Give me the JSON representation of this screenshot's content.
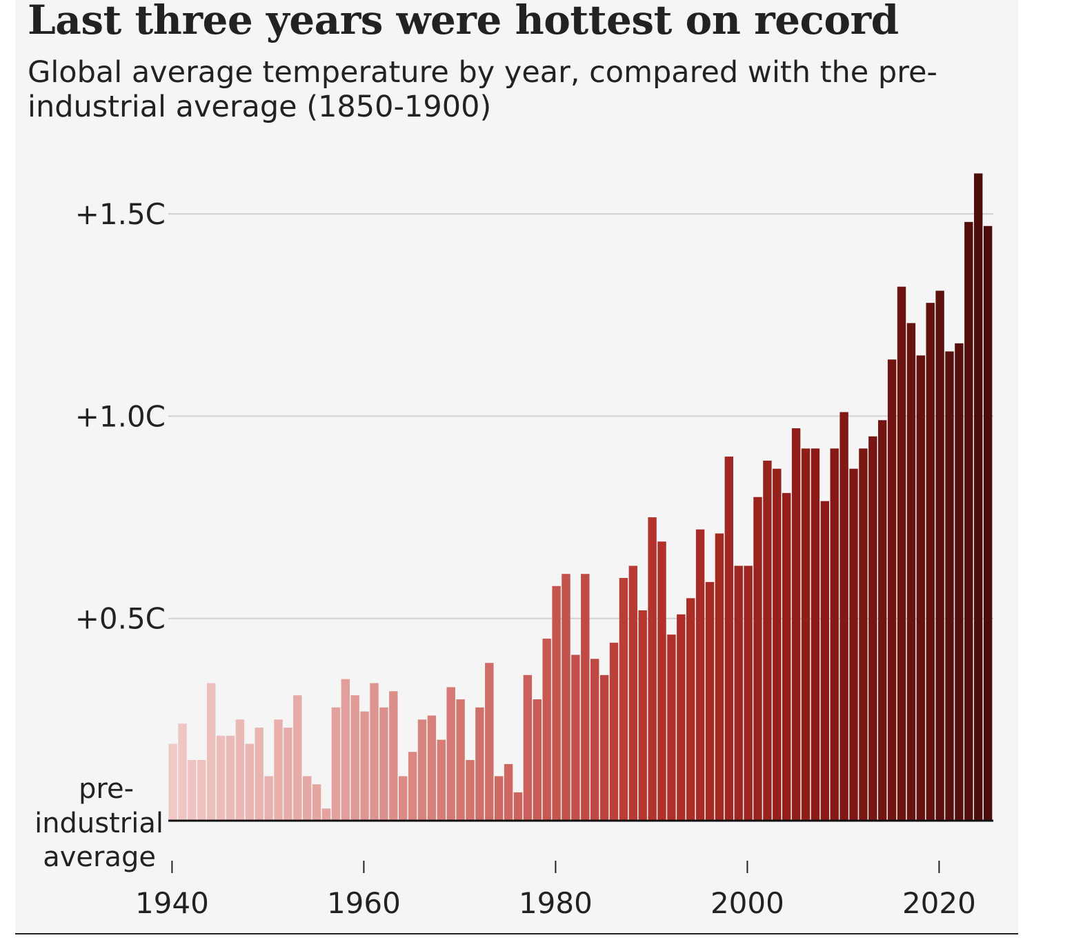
{
  "title": "Last three years were hottest on record",
  "subtitle": "Global average temperature by year, compared with the pre-industrial average (1850-1900)",
  "chart_data": {
    "type": "bar",
    "title": "Last three years were hottest on record",
    "subtitle": "Global average temperature by year, compared with the pre-industrial average (1850-1900)",
    "xlabel": "",
    "ylabel": "",
    "unit": "°C above pre-industrial average",
    "grid": true,
    "ylim": [
      0,
      1.6
    ],
    "baseline_label": [
      "pre-",
      "industrial",
      "average"
    ],
    "yticks": [
      {
        "value": 0.5,
        "label": "+0.5C"
      },
      {
        "value": 1.0,
        "label": "+1.0C"
      },
      {
        "value": 1.5,
        "label": "+1.5C"
      }
    ],
    "xticks": [
      {
        "value": 1940,
        "label": "1940"
      },
      {
        "value": 1960,
        "label": "1960"
      },
      {
        "value": 1980,
        "label": "1980"
      },
      {
        "value": 2000,
        "label": "2000"
      },
      {
        "value": 2020,
        "label": "2020"
      }
    ],
    "color_scale": [
      "#f0c8c6",
      "#e3a19d",
      "#cf6a63",
      "#b3302a",
      "#8a1a16",
      "#4a0d0b"
    ],
    "years": [
      1940,
      1941,
      1942,
      1943,
      1944,
      1945,
      1946,
      1947,
      1948,
      1949,
      1950,
      1951,
      1952,
      1953,
      1954,
      1955,
      1956,
      1957,
      1958,
      1959,
      1960,
      1961,
      1962,
      1963,
      1964,
      1965,
      1966,
      1967,
      1968,
      1969,
      1970,
      1971,
      1972,
      1973,
      1974,
      1975,
      1976,
      1977,
      1978,
      1979,
      1980,
      1981,
      1982,
      1983,
      1984,
      1985,
      1986,
      1987,
      1988,
      1989,
      1990,
      1991,
      1992,
      1993,
      1994,
      1995,
      1996,
      1997,
      1998,
      1999,
      2000,
      2001,
      2002,
      2003,
      2004,
      2005,
      2006,
      2007,
      2008,
      2009,
      2010,
      2011,
      2012,
      2013,
      2014,
      2015,
      2016,
      2017,
      2018,
      2019,
      2020,
      2021,
      2022,
      2023,
      2024,
      2025
    ],
    "values": [
      0.19,
      0.24,
      0.15,
      0.15,
      0.34,
      0.21,
      0.21,
      0.25,
      0.19,
      0.23,
      0.11,
      0.25,
      0.23,
      0.31,
      0.11,
      0.09,
      0.03,
      0.28,
      0.35,
      0.31,
      0.27,
      0.34,
      0.28,
      0.32,
      0.11,
      0.17,
      0.25,
      0.26,
      0.2,
      0.33,
      0.3,
      0.15,
      0.28,
      0.39,
      0.11,
      0.14,
      0.07,
      0.36,
      0.3,
      0.45,
      0.58,
      0.61,
      0.41,
      0.61,
      0.4,
      0.36,
      0.44,
      0.6,
      0.63,
      0.52,
      0.75,
      0.69,
      0.46,
      0.51,
      0.55,
      0.72,
      0.59,
      0.71,
      0.9,
      0.63,
      0.63,
      0.8,
      0.89,
      0.87,
      0.81,
      0.97,
      0.92,
      0.92,
      0.79,
      0.92,
      1.01,
      0.87,
      0.92,
      0.95,
      0.99,
      1.14,
      1.32,
      1.23,
      1.15,
      1.28,
      1.31,
      1.16,
      1.18,
      1.48,
      1.6,
      1.47
    ]
  }
}
